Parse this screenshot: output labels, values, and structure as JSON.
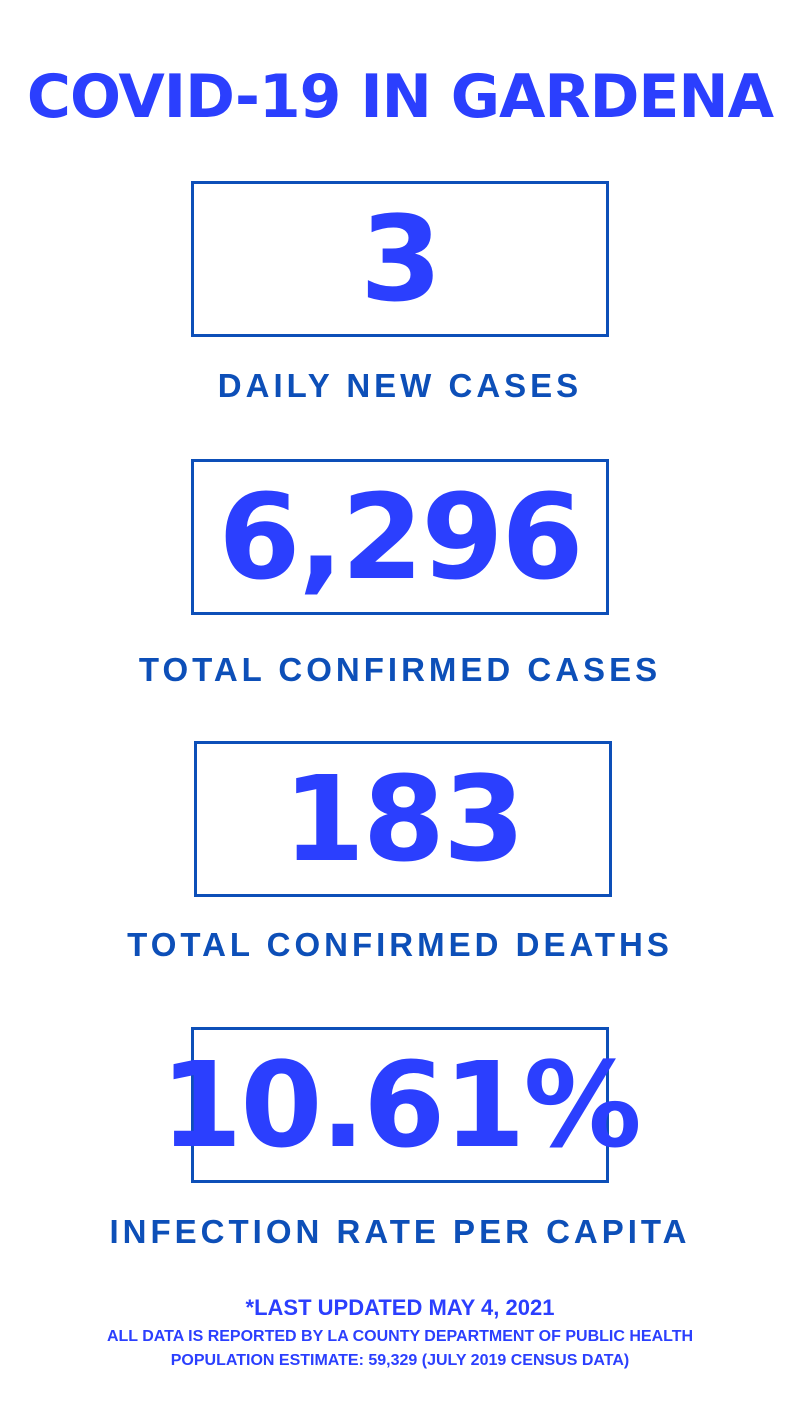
{
  "title": "COVID-19 IN GARDENA",
  "colors": {
    "accent": "#2b3ffe",
    "label": "#0d4fb8"
  },
  "stats": [
    {
      "value": "3",
      "label": "DAILY NEW CASES"
    },
    {
      "value": "6,296",
      "label": "TOTAL CONFIRMED CASES"
    },
    {
      "value": "183",
      "label": "TOTAL CONFIRMED DEATHS"
    },
    {
      "value": "10.61%",
      "label": "INFECTION RATE PER CAPITA"
    }
  ],
  "footer": {
    "updated": "*LAST UPDATED MAY 4, 2021",
    "source": "ALL DATA IS REPORTED BY LA COUNTY DEPARTMENT OF PUBLIC HEALTH",
    "population": "POPULATION ESTIMATE: 59,329 (JULY 2019 CENSUS DATA)"
  }
}
